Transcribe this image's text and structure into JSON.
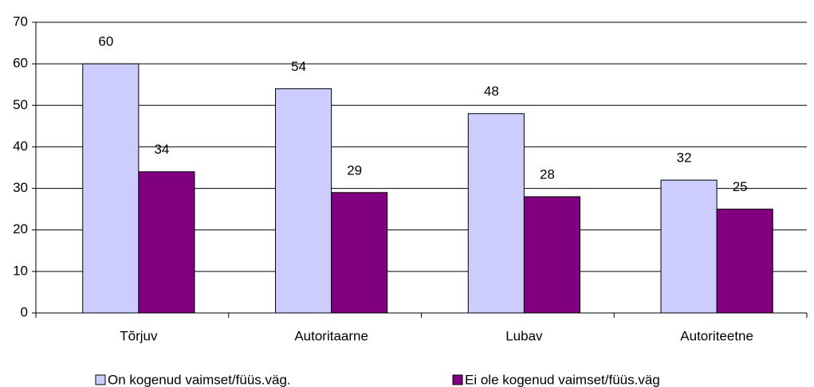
{
  "chart_data": {
    "type": "bar",
    "categories": [
      "Tõrjuv",
      "Autoritaarne",
      "Lubav",
      "Autoriteetne"
    ],
    "series": [
      {
        "name": "On kogenud vaimset/füüs.väg.",
        "color": "#ccccff",
        "values": [
          60,
          54,
          48,
          32
        ]
      },
      {
        "name": "Ei ole kogenud vaimset/füüs.väg",
        "color": "#800080",
        "values": [
          34,
          29,
          28,
          25
        ]
      }
    ],
    "ylim": [
      0,
      70
    ],
    "yticks": [
      0,
      10,
      20,
      30,
      40,
      50,
      60,
      70
    ],
    "grid": true,
    "legend": "bottom"
  }
}
